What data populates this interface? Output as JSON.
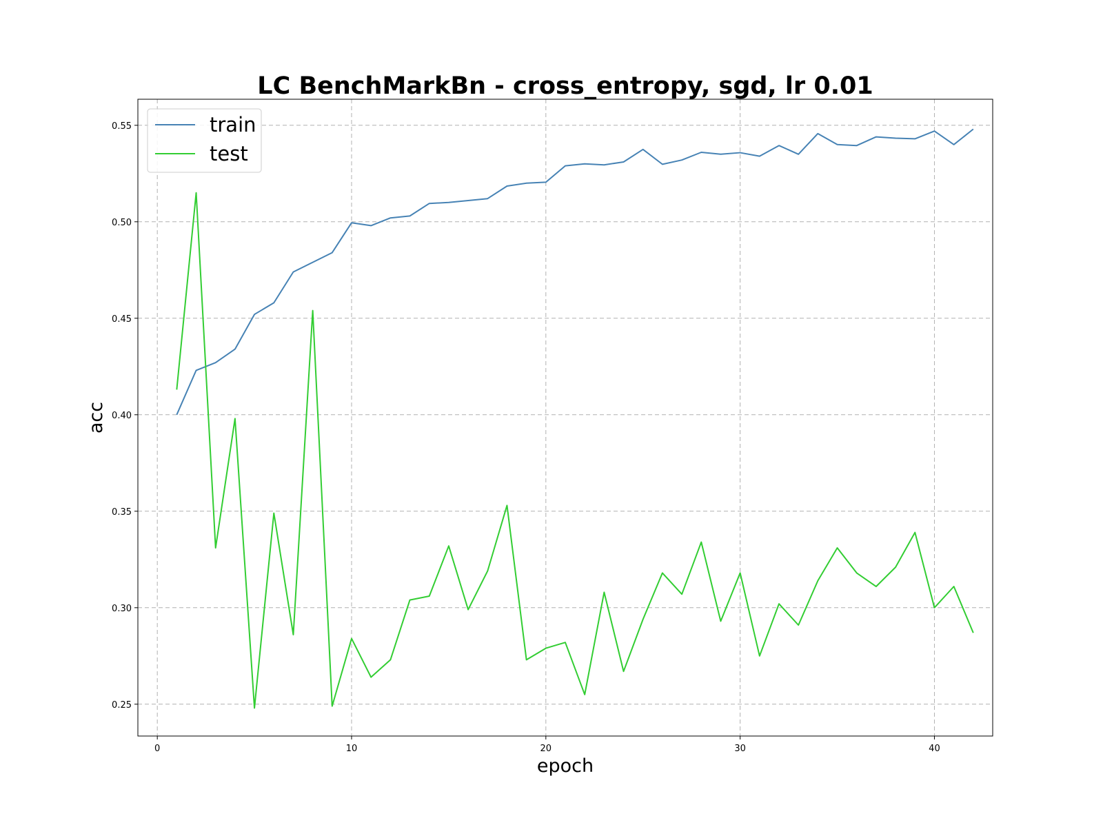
{
  "chart_data": {
    "type": "line",
    "title": "LC BenchMarkBn - cross_entropy, sgd, lr 0.01",
    "xlabel": "epoch",
    "ylabel": "acc",
    "xlim": [
      -1,
      43
    ],
    "ylim": [
      0.2335,
      0.5635
    ],
    "xticks": [
      0,
      10,
      20,
      30,
      40
    ],
    "xtick_labels": [
      "0",
      "10",
      "20",
      "30",
      "40"
    ],
    "yticks": [
      0.25,
      0.3,
      0.35,
      0.4,
      0.45,
      0.5,
      0.55
    ],
    "ytick_labels": [
      "0.25",
      "0.30",
      "0.35",
      "0.40",
      "0.45",
      "0.50",
      "0.55"
    ],
    "grid": true,
    "legend": "upper-left",
    "x": [
      1,
      2,
      3,
      4,
      5,
      6,
      7,
      8,
      9,
      10,
      11,
      12,
      13,
      14,
      15,
      16,
      17,
      18,
      19,
      20,
      21,
      22,
      23,
      24,
      25,
      26,
      27,
      28,
      29,
      30,
      31,
      32,
      33,
      34,
      35,
      36,
      37,
      38,
      39,
      40,
      41,
      42
    ],
    "series": [
      {
        "name": "train",
        "color": "#4682b4",
        "values": [
          0.4,
          0.423,
          0.427,
          0.434,
          0.452,
          0.458,
          0.474,
          0.479,
          0.484,
          0.4995,
          0.498,
          0.502,
          0.503,
          0.5095,
          0.51,
          0.511,
          0.512,
          0.5185,
          0.52,
          0.5205,
          0.529,
          0.53,
          0.5295,
          0.531,
          0.5375,
          0.5298,
          0.532,
          0.536,
          0.535,
          0.5358,
          0.534,
          0.5395,
          0.535,
          0.5457,
          0.54,
          0.5395,
          0.544,
          0.5433,
          0.543,
          0.547,
          0.54,
          0.548
        ]
      },
      {
        "name": "test",
        "color": "#32cd32",
        "values": [
          0.413,
          0.515,
          0.331,
          0.398,
          0.248,
          0.349,
          0.286,
          0.454,
          0.249,
          0.284,
          0.264,
          0.273,
          0.304,
          0.306,
          0.332,
          0.299,
          0.319,
          0.353,
          0.273,
          0.279,
          0.282,
          0.255,
          0.308,
          0.267,
          0.294,
          0.318,
          0.307,
          0.334,
          0.293,
          0.318,
          0.275,
          0.302,
          0.291,
          0.314,
          0.331,
          0.318,
          0.311,
          0.321,
          0.339,
          0.3,
          0.311,
          0.287
        ]
      }
    ]
  }
}
